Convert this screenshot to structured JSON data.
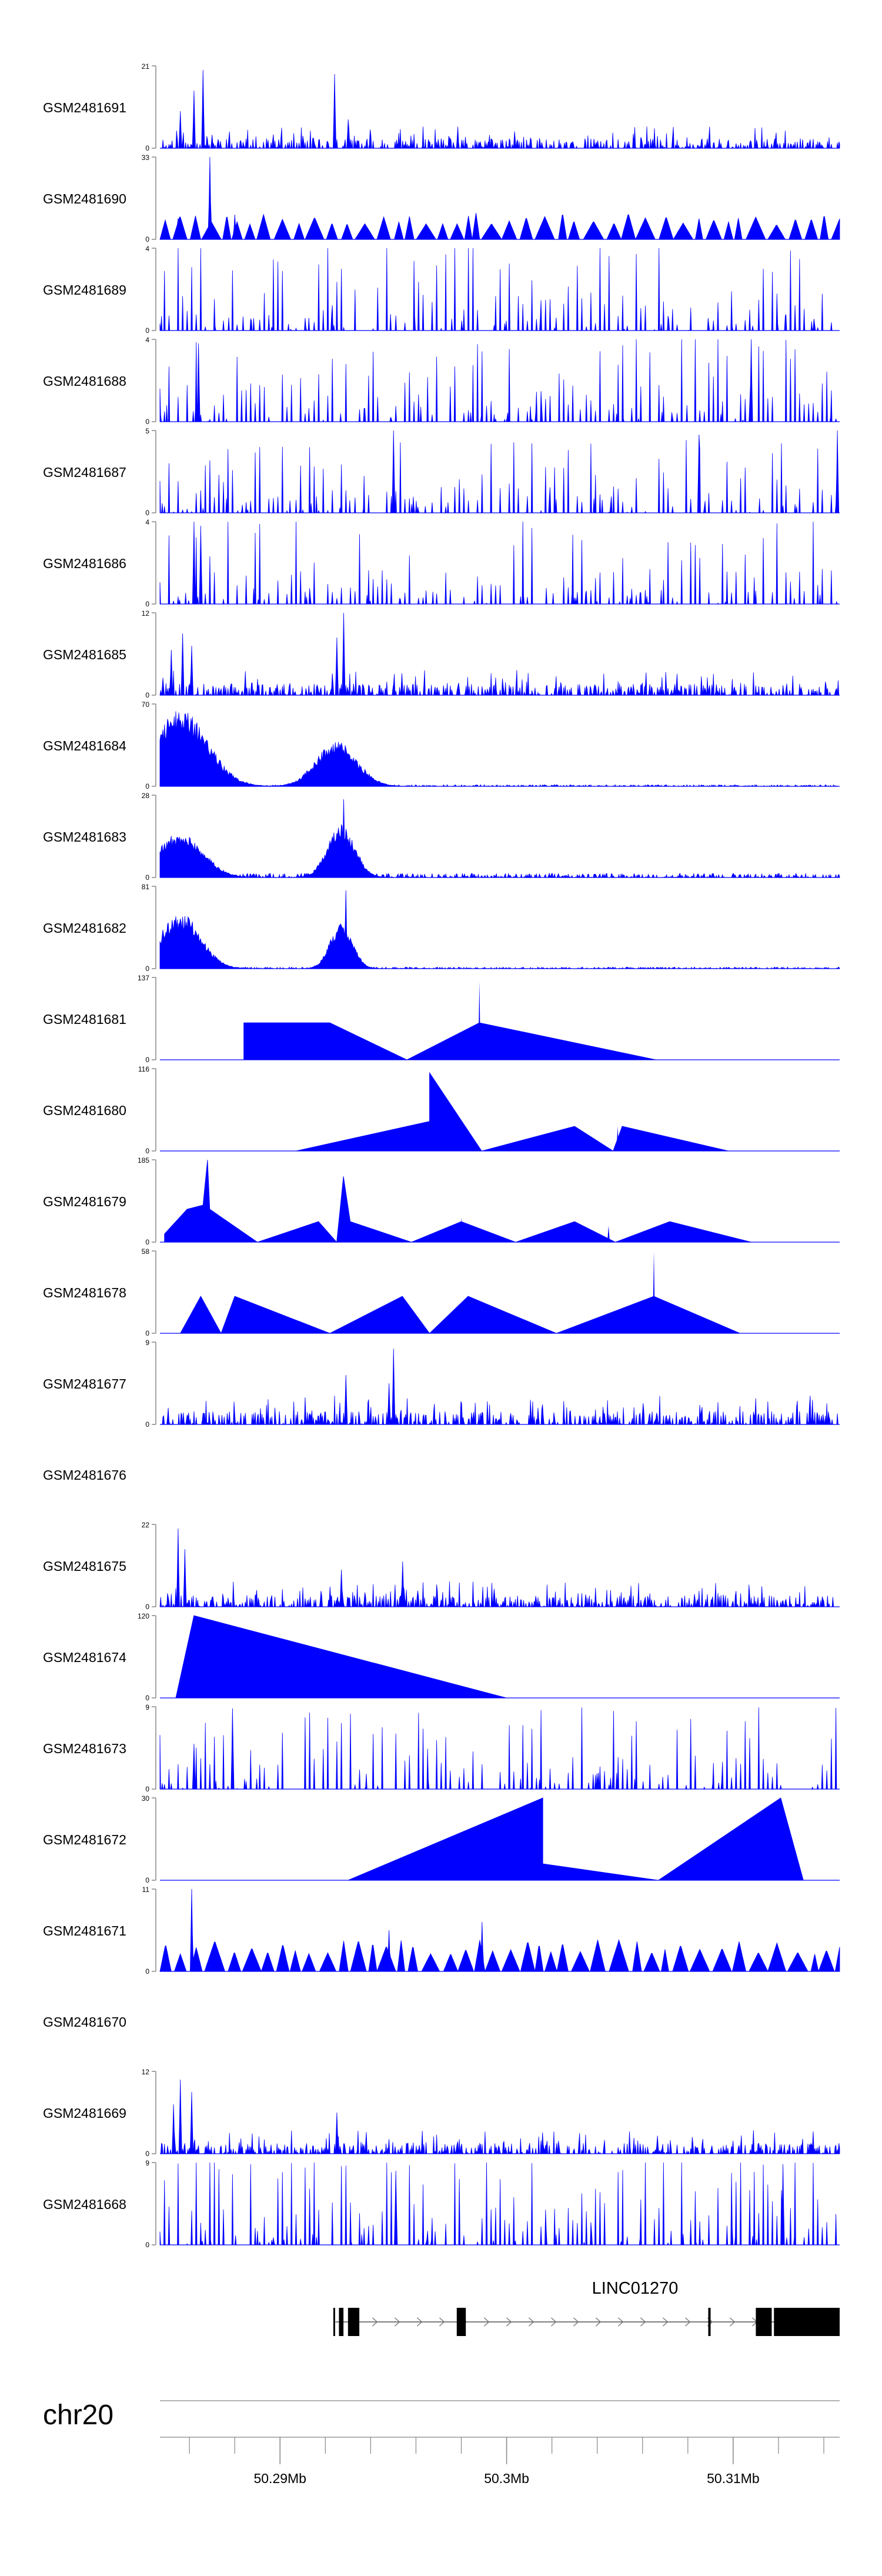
{
  "chart_data": {
    "type": "area",
    "title": "",
    "colors": {
      "signal": "#0000ff",
      "axis": "#888888",
      "text": "#000000",
      "gene": "#000000"
    },
    "x_range_mb": [
      50.2847,
      50.3147
    ],
    "tracks": [
      {
        "name": "GSM2481691",
        "ymax": "21",
        "style": "dense",
        "seed": 11,
        "peaks": [
          [
            50.2856,
            0.45
          ],
          [
            50.2862,
            0.7
          ],
          [
            50.2866,
            0.95
          ],
          [
            50.2924,
            0.9
          ],
          [
            50.293,
            0.35
          ]
        ],
        "base": 0.12
      },
      {
        "name": "GSM2481690",
        "ymax": "33",
        "style": "sparse",
        "seed": 23,
        "peaks": [
          [
            50.2855,
            0.25
          ],
          [
            50.2869,
            1.0
          ],
          [
            50.288,
            0.3
          ]
        ],
        "knots": [
          50.2849,
          50.2857,
          50.2876,
          50.2889,
          50.2903,
          50.2915,
          50.2926,
          50.2933,
          50.2945,
          50.2957,
          50.2968,
          50.2978,
          50.2987,
          50.2994,
          50.3003,
          50.3019,
          50.3031,
          50.3037,
          50.3044,
          50.3052,
          50.3063,
          50.3072,
          50.3081,
          50.3087,
          50.3093,
          50.31,
          50.3113,
          50.3118,
          50.3124,
          50.3133,
          50.314
        ],
        "base": 0.3
      },
      {
        "name": "GSM2481689",
        "ymax": "4",
        "style": "spiky",
        "seed": 37,
        "peaks": [],
        "base": 0.55
      },
      {
        "name": "GSM2481688",
        "ymax": "4",
        "style": "spiky",
        "seed": 41,
        "peaks": [
          [
            50.2864,
            0.95
          ],
          [
            50.3108,
            1.0
          ]
        ],
        "base": 0.45
      },
      {
        "name": "GSM2481687",
        "ymax": "5",
        "style": "spiky",
        "seed": 53,
        "peaks": [
          [
            50.295,
            1.0
          ],
          [
            50.3085,
            0.95
          ],
          [
            50.3146,
            1.0
          ]
        ],
        "base": 0.32
      },
      {
        "name": "GSM2481686",
        "ymax": "4",
        "style": "spiky",
        "seed": 61,
        "peaks": [
          [
            50.2862,
            1.0
          ],
          [
            50.2865,
            0.95
          ]
        ],
        "base": 0.45
      },
      {
        "name": "GSM2481685",
        "ymax": "12",
        "style": "dense",
        "seed": 71,
        "peaks": [
          [
            50.2852,
            0.55
          ],
          [
            50.2857,
            0.75
          ],
          [
            50.2861,
            0.6
          ],
          [
            50.2925,
            0.7
          ],
          [
            50.2928,
            1.0
          ]
        ],
        "base": 0.14
      },
      {
        "name": "GSM2481684",
        "ymax": "70",
        "style": "bumps",
        "seed": 83,
        "peaks": [],
        "bumps": [
          [
            50.2856,
            0.0012,
            0.85
          ],
          [
            50.2925,
            0.0009,
            0.5
          ]
        ],
        "base": 0.02
      },
      {
        "name": "GSM2481683",
        "ymax": "28",
        "style": "bumps",
        "seed": 97,
        "peaks": [
          [
            50.2928,
            0.95
          ]
        ],
        "bumps": [
          [
            50.2856,
            0.001,
            0.5
          ],
          [
            50.2927,
            0.0006,
            0.6
          ]
        ],
        "base": 0.05
      },
      {
        "name": "GSM2481682",
        "ymax": "81",
        "style": "bumps",
        "seed": 101,
        "peaks": [
          [
            50.2929,
            0.95
          ]
        ],
        "bumps": [
          [
            50.2856,
            0.0009,
            0.62
          ],
          [
            50.2927,
            0.0005,
            0.5
          ]
        ],
        "base": 0.02
      },
      {
        "name": "GSM2481681",
        "ymax": "137",
        "style": "triangles",
        "peaks": [],
        "tri": [
          [
            50.2884,
            0.45
          ],
          [
            50.2922,
            0.45
          ],
          [
            50.2956,
            0.0
          ],
          [
            50.2988,
            0.45
          ],
          [
            50.3066,
            0.0
          ]
        ],
        "spikes": [
          [
            50.2922,
            0.2
          ],
          [
            50.2988,
            0.95
          ]
        ]
      },
      {
        "name": "GSM2481680",
        "ymax": "116",
        "style": "triangles",
        "peaks": [],
        "tri": [
          [
            50.2907,
            0.0
          ],
          [
            50.2966,
            0.36
          ],
          [
            50.2966,
            0.95
          ],
          [
            50.2989,
            0.0
          ],
          [
            50.303,
            0.3
          ],
          [
            50.3047,
            0.0
          ],
          [
            50.3051,
            0.3
          ],
          [
            50.3098,
            0.0
          ]
        ],
        "spikes": [
          [
            50.3049,
            0.3
          ]
        ]
      },
      {
        "name": "GSM2481679",
        "ymax": "185",
        "style": "triangles",
        "peaks": [],
        "tri": [
          [
            50.2849,
            0.1
          ],
          [
            50.2859,
            0.4
          ],
          [
            50.2866,
            0.45
          ],
          [
            50.2868,
            1.0
          ],
          [
            50.2869,
            0.4
          ],
          [
            50.289,
            0.0
          ],
          [
            50.2917,
            0.25
          ],
          [
            50.2925,
            0.0
          ],
          [
            50.2928,
            0.8
          ],
          [
            50.2931,
            0.25
          ],
          [
            50.2958,
            0.0
          ],
          [
            50.298,
            0.25
          ],
          [
            50.3004,
            0.0
          ],
          [
            50.303,
            0.25
          ],
          [
            50.3048,
            0.0
          ],
          [
            50.3072,
            0.25
          ],
          [
            50.3108,
            0.0
          ]
        ],
        "spikes": [
          [
            50.298,
            0.3
          ],
          [
            50.3045,
            0.2
          ]
        ]
      },
      {
        "name": "GSM2481678",
        "ymax": "58",
        "style": "triangles",
        "peaks": [],
        "tri": [
          [
            50.2856,
            0.0
          ],
          [
            50.2865,
            0.45
          ],
          [
            50.2874,
            0.0
          ],
          [
            50.288,
            0.45
          ],
          [
            50.2922,
            0.0
          ],
          [
            50.2954,
            0.45
          ],
          [
            50.2966,
            0.0
          ],
          [
            50.2983,
            0.45
          ],
          [
            50.3022,
            0.0
          ],
          [
            50.3065,
            0.45
          ],
          [
            50.3103,
            0.0
          ]
        ],
        "spikes": [
          [
            50.3065,
            1.0
          ]
        ]
      },
      {
        "name": "GSM2481677",
        "ymax": "9",
        "style": "dense",
        "seed": 131,
        "peaks": [
          [
            50.2929,
            0.6
          ],
          [
            50.295,
            0.92
          ],
          [
            50.2948,
            0.5
          ]
        ],
        "base": 0.16
      },
      {
        "name": "GSM2481676",
        "ymax": "",
        "style": "empty",
        "peaks": []
      },
      {
        "name": "GSM2481675",
        "ymax": "22",
        "style": "dense",
        "seed": 149,
        "peaks": [
          [
            50.2855,
            0.95
          ],
          [
            50.2858,
            0.7
          ],
          [
            50.2927,
            0.45
          ],
          [
            50.2954,
            0.55
          ]
        ],
        "base": 0.14
      },
      {
        "name": "GSM2481674",
        "ymax": "120",
        "style": "triangles",
        "peaks": [],
        "tri": [
          [
            50.2854,
            0.0
          ],
          [
            50.2862,
            1.0
          ],
          [
            50.3,
            0.0
          ]
        ],
        "spikes": []
      },
      {
        "name": "GSM2481673",
        "ymax": "9",
        "style": "spiky",
        "seed": 163,
        "peaks": [
          [
            50.2879,
            0.98
          ],
          [
            50.2862,
            0.55
          ]
        ],
        "base": 0.4
      },
      {
        "name": "GSM2481672",
        "ymax": "30",
        "style": "triangles",
        "peaks": [],
        "tri": [
          [
            50.293,
            0.0
          ],
          [
            50.3016,
            1.0
          ],
          [
            50.3016,
            0.2
          ],
          [
            50.3067,
            0.0
          ],
          [
            50.3121,
            1.0
          ],
          [
            50.3131,
            0.0
          ]
        ],
        "spikes": []
      },
      {
        "name": "GSM2481671",
        "ymax": "11",
        "style": "sparse",
        "seed": 181,
        "peaks": [
          [
            50.2861,
            1.0
          ],
          [
            50.2948,
            0.5
          ],
          [
            50.2989,
            0.6
          ]
        ],
        "knots": [],
        "base": 0.35
      },
      {
        "name": "GSM2481670",
        "ymax": "",
        "style": "empty",
        "peaks": []
      },
      {
        "name": "GSM2481669",
        "ymax": "12",
        "style": "dense",
        "seed": 197,
        "peaks": [
          [
            50.2856,
            0.9
          ],
          [
            50.2853,
            0.6
          ],
          [
            50.2861,
            0.75
          ],
          [
            50.2925,
            0.5
          ]
        ],
        "base": 0.13
      },
      {
        "name": "GSM2481668",
        "ymax": "9",
        "style": "spiky",
        "seed": 211,
        "peaks": [
          [
            50.3122,
            0.98
          ],
          [
            50.2951,
            0.9
          ]
        ],
        "base": 0.55
      }
    ],
    "gene": {
      "label": "LINC01270",
      "span_mb": [
        50.2926,
        50.3147
      ],
      "exons_mb": [
        [
          50.2926,
          50.2928
        ],
        [
          50.293,
          50.2935
        ],
        [
          50.2978,
          50.2982
        ],
        [
          50.3089,
          50.309
        ],
        [
          50.311,
          50.3117
        ],
        [
          50.3118,
          50.3147
        ]
      ]
    },
    "axis": {
      "chromosome": "chr20",
      "major_ticks_mb": [
        50.29,
        50.3,
        50.31
      ],
      "major_labels": [
        "50.29Mb",
        "50.3Mb",
        "50.31Mb"
      ],
      "minor_step_mb": 0.002
    }
  }
}
